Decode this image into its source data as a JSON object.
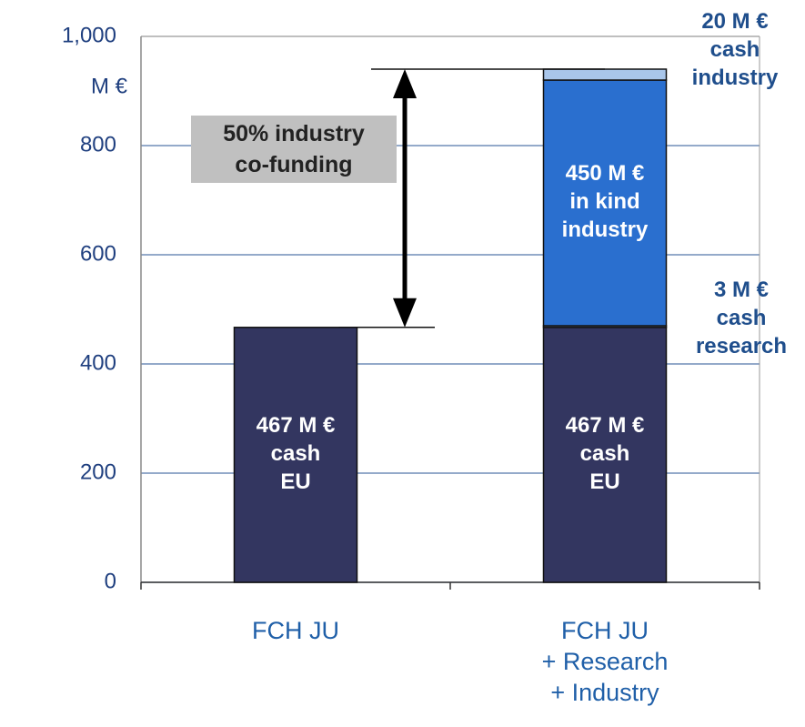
{
  "chart_data": {
    "type": "stacked_bar",
    "y_label": "M €",
    "categories": [
      "FCH JU",
      "FCH JU\n+ Research\n+ Industry"
    ],
    "series": [
      {
        "name": "cash\nEU",
        "color": "#333660",
        "values": [
          467,
          467
        ],
        "value_labels": [
          "467 M €",
          "467 M €"
        ]
      },
      {
        "name": "cash\nresearch",
        "color": "#a9c6ea",
        "values": [
          null,
          3
        ],
        "value_labels": [
          null,
          "3 M €"
        ]
      },
      {
        "name": "in kind\nindustry",
        "color": "#2a6fcf",
        "values": [
          null,
          450
        ],
        "value_labels": [
          null,
          "450 M €"
        ]
      },
      {
        "name": "cash\nindustry",
        "color": "#a9c6ea",
        "values": [
          null,
          20
        ],
        "value_labels": [
          null,
          "20 M €"
        ]
      }
    ],
    "annotation": "50% industry\nco-funding",
    "ylim": [
      0,
      1000
    ],
    "yticks": [
      0,
      200,
      400,
      600,
      800,
      {
        "value": 1000,
        "label": "1,000"
      }
    ],
    "grid": true
  }
}
